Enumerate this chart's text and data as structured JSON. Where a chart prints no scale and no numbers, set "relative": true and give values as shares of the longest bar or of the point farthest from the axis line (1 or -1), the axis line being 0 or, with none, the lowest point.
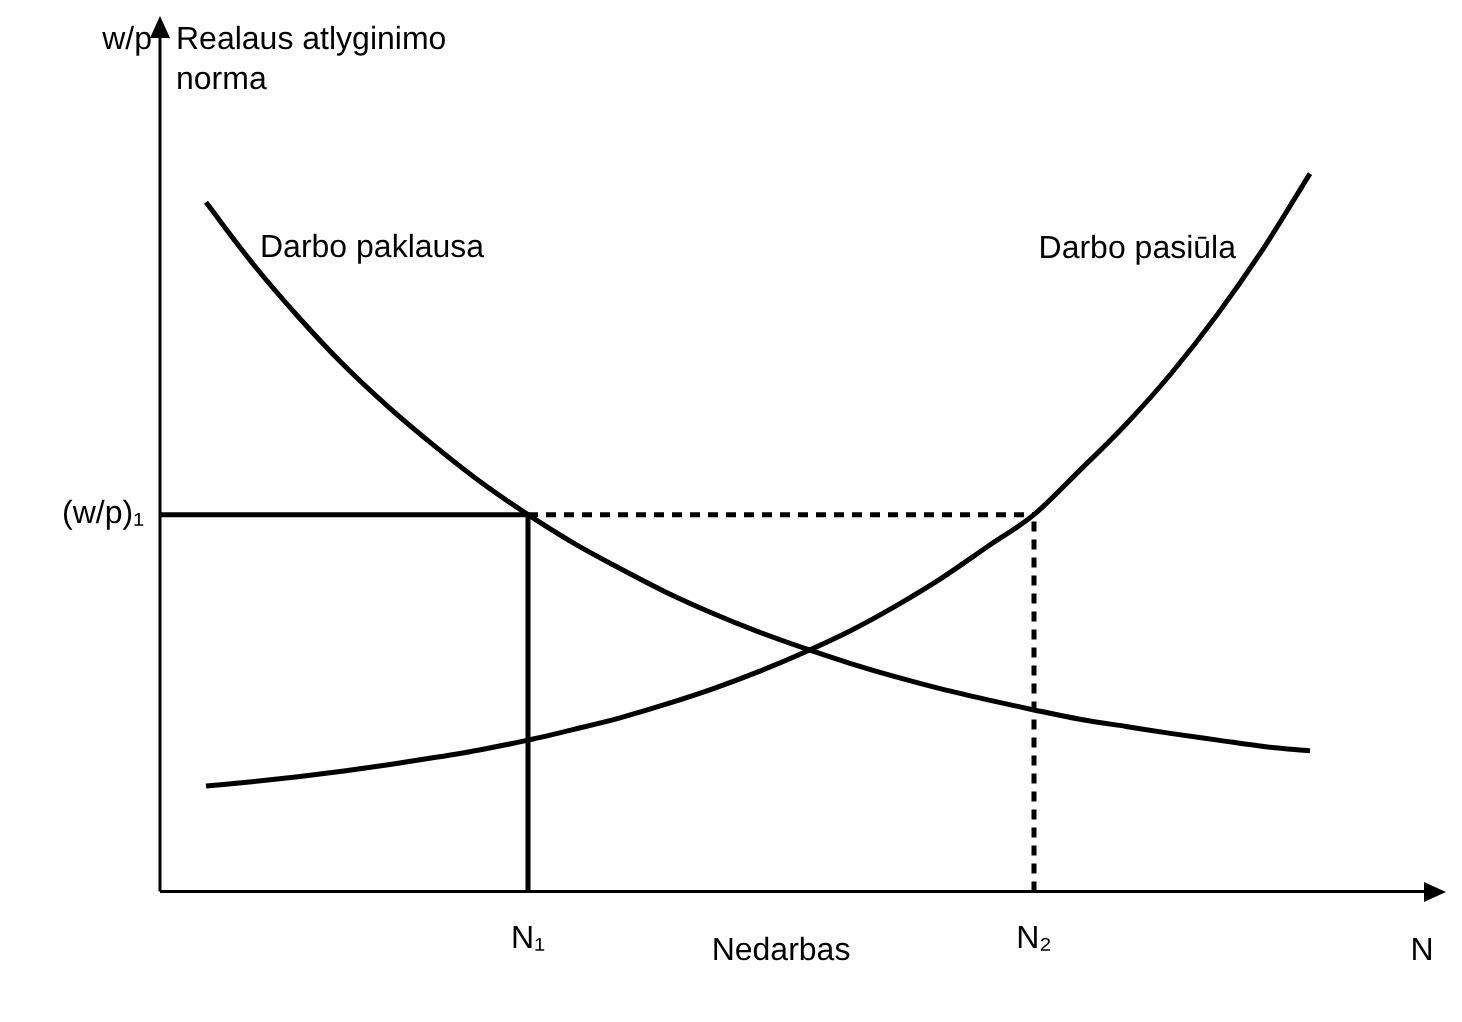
{
  "chart_data": {
    "type": "line",
    "relative": true,
    "ylabel": "w/p",
    "xlabel": "N",
    "marker": "none",
    "line_style": "solid",
    "categories": [
      null,
      null,
      null,
      null,
      null,
      null,
      null,
      null,
      "N₁",
      null,
      null,
      null,
      null,
      null,
      null,
      null,
      null,
      null,
      null,
      "N₂",
      null,
      null,
      null,
      null,
      null,
      null,
      null,
      null
    ],
    "annotations": [
      "Realaus atlyginimo norma",
      "Nedarbas",
      "(w/p)₁"
    ],
    "ref_lines": [
      {
        "axis": "x",
        "value": "N₁",
        "line_style": "solid"
      },
      {
        "axis": "x",
        "value": "N₂",
        "line_style": "dashed"
      }
    ],
    "series": [
      {
        "name": "Darbo paklausa",
        "color": "#000000",
        "values": [
          null,
          0.96,
          0.876,
          0.801,
          0.733,
          0.673,
          0.619,
          0.569,
          0.525,
          0.485,
          0.45,
          0.417,
          0.388,
          0.362,
          0.339,
          0.318,
          0.299,
          0.282,
          0.267,
          0.253,
          0.24,
          0.23,
          0.22,
          0.211,
          0.202,
          0.196,
          null,
          null
        ]
      },
      {
        "name": "Darbo pasiūla",
        "color": "#000000",
        "values": [
          null,
          0.147,
          0.153,
          0.16,
          0.168,
          0.177,
          0.187,
          0.198,
          0.211,
          0.226,
          0.242,
          0.261,
          0.282,
          0.306,
          0.333,
          0.363,
          0.398,
          0.437,
          0.481,
          0.525,
          0.587,
          0.651,
          0.723,
          0.805,
          0.897,
          1.0,
          null,
          null
        ]
      },
      {
        "color": "#000000",
        "line_style": "solid",
        "values": [
          0.525,
          0.525,
          0.525,
          0.525,
          0.525,
          0.525,
          0.525,
          0.525,
          0.525,
          null,
          null,
          null,
          null,
          null,
          null,
          null,
          null,
          null,
          null,
          null,
          null,
          null,
          null,
          null,
          null,
          null,
          null,
          null
        ]
      },
      {
        "color": "#000000",
        "line_style": "dashed",
        "values": [
          null,
          null,
          null,
          null,
          null,
          null,
          null,
          null,
          0.525,
          0.525,
          0.525,
          0.525,
          0.525,
          0.525,
          0.525,
          0.525,
          0.525,
          0.525,
          0.525,
          0.525,
          null,
          null,
          null,
          null,
          null,
          null,
          null,
          null
        ]
      }
    ]
  }
}
